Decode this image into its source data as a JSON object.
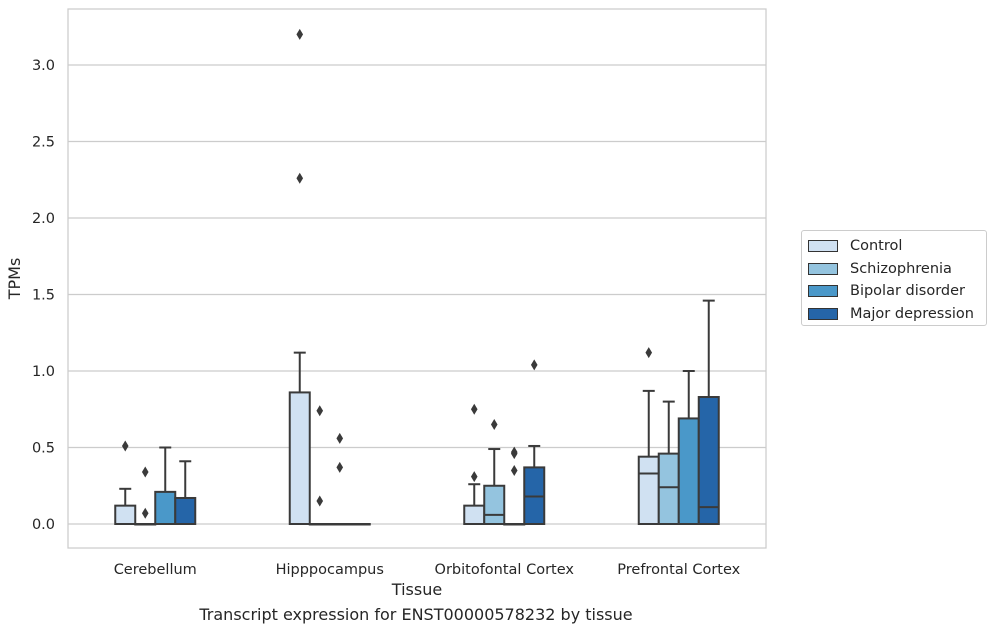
{
  "caption": "Transcript expression for ENST00000578232 by tissue",
  "chart_data": {
    "type": "box",
    "title": "",
    "xlabel": "Tissue",
    "ylabel": "TPMs",
    "ylim": [
      -0.155,
      3.3
    ],
    "yticks": [
      "0.0",
      "0.5",
      "1.0",
      "1.5",
      "2.0",
      "2.5",
      "3.0"
    ],
    "grid": "horizontal",
    "legend_position": "right",
    "categories": [
      "Cerebellum",
      "Hipppocampus",
      "Orbitofontal Cortex",
      "Prefrontal Cortex"
    ],
    "series": [
      {
        "name": "Control",
        "color": "#d0e1f2",
        "boxes": [
          {
            "whisker_low": 0,
            "q1": 0,
            "median": 0,
            "q3": 0.12,
            "whisker_high": 0.23,
            "outliers": [
              0.51
            ]
          },
          {
            "whisker_low": 0,
            "q1": 0,
            "median": 0,
            "q3": 0.86,
            "whisker_high": 1.12,
            "outliers": [
              2.26,
              3.2
            ]
          },
          {
            "whisker_low": 0,
            "q1": 0,
            "median": 0,
            "q3": 0.12,
            "whisker_high": 0.26,
            "outliers": [
              0.31,
              0.75
            ]
          },
          {
            "whisker_low": 0,
            "q1": 0,
            "median": 0.33,
            "q3": 0.44,
            "whisker_high": 0.87,
            "outliers": [
              1.12
            ]
          }
        ]
      },
      {
        "name": "Schizophrenia",
        "color": "#94c4df",
        "boxes": [
          {
            "whisker_low": 0,
            "q1": 0,
            "median": 0,
            "q3": 0,
            "whisker_high": 0,
            "outliers": [
              0.07,
              0.34
            ]
          },
          {
            "whisker_low": 0,
            "q1": 0,
            "median": 0,
            "q3": 0,
            "whisker_high": 0,
            "outliers": [
              0.15,
              0.74
            ]
          },
          {
            "whisker_low": 0,
            "q1": 0,
            "median": 0.06,
            "q3": 0.25,
            "whisker_high": 0.49,
            "outliers": [
              0.65
            ]
          },
          {
            "whisker_low": 0,
            "q1": 0,
            "median": 0.24,
            "q3": 0.46,
            "whisker_high": 0.8,
            "outliers": []
          }
        ]
      },
      {
        "name": "Bipolar disorder",
        "color": "#4a98c9",
        "boxes": [
          {
            "whisker_low": 0,
            "q1": 0,
            "median": 0,
            "q3": 0.21,
            "whisker_high": 0.5,
            "outliers": []
          },
          {
            "whisker_low": 0,
            "q1": 0,
            "median": 0,
            "q3": 0,
            "whisker_high": 0,
            "outliers": [
              0.37,
              0.56
            ]
          },
          {
            "whisker_low": 0,
            "q1": 0,
            "median": 0,
            "q3": 0,
            "whisker_high": 0,
            "outliers": [
              0.35,
              0.46,
              0.47
            ]
          },
          {
            "whisker_low": 0,
            "q1": 0,
            "median": 0,
            "q3": 0.69,
            "whisker_high": 1.0,
            "outliers": []
          }
        ]
      },
      {
        "name": "Major depression",
        "color": "#2565a8",
        "boxes": [
          {
            "whisker_low": 0,
            "q1": 0,
            "median": 0,
            "q3": 0.17,
            "whisker_high": 0.41,
            "outliers": []
          },
          {
            "whisker_low": 0,
            "q1": 0,
            "median": 0,
            "q3": 0,
            "whisker_high": 0,
            "outliers": []
          },
          {
            "whisker_low": 0,
            "q1": 0,
            "median": 0.18,
            "q3": 0.37,
            "whisker_high": 0.51,
            "outliers": [
              1.04
            ]
          },
          {
            "whisker_low": 0,
            "q1": 0,
            "median": 0.11,
            "q3": 0.83,
            "whisker_high": 1.46,
            "outliers": []
          }
        ]
      }
    ]
  }
}
